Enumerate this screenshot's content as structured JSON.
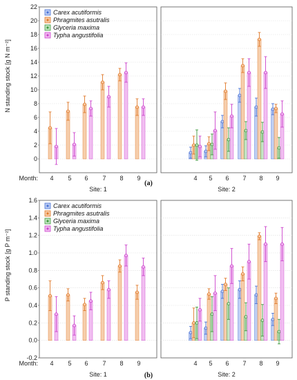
{
  "legend": [
    {
      "name": "Carex acutiformis",
      "color": "#4a73d6",
      "fill": "#b9caf2"
    },
    {
      "name": "Phragmites asutralis",
      "color": "#e07a2c",
      "fill": "#f6c9a4"
    },
    {
      "name": "Glyceria maxima",
      "color": "#3f9a3f",
      "fill": "#bfe3bf"
    },
    {
      "name": "Typha angustifolia",
      "color": "#cc44cc",
      "fill": "#f0b8f0"
    }
  ],
  "month_label": "Month:",
  "chart_data": [
    {
      "type": "bar",
      "label": "(a)",
      "ylabel": "N standing stock [g N m⁻²]",
      "ylim": [
        -2,
        22
      ],
      "yticks": [
        0,
        2,
        4,
        6,
        8,
        10,
        12,
        14,
        16,
        18,
        20,
        22
      ],
      "sites": [
        {
          "name": "Site: 1",
          "months": [
            "4",
            "5",
            "6",
            "7",
            "8",
            "9"
          ],
          "series": [
            {
              "name": "Carex acutiformis",
              "values": [
                null,
                null,
                null,
                null,
                null,
                null
              ],
              "err": [
                0,
                0,
                0,
                0,
                0,
                0
              ]
            },
            {
              "name": "Phragmites asutralis",
              "values": [
                4.5,
                6.9,
                7.9,
                11.1,
                12.2,
                7.5
              ],
              "err": [
                2.3,
                1.3,
                1.2,
                1.1,
                0.9,
                1.2
              ]
            },
            {
              "name": "Glyceria maxima",
              "values": [
                null,
                null,
                null,
                null,
                null,
                null
              ],
              "err": [
                0,
                0,
                0,
                0,
                0,
                0
              ]
            },
            {
              "name": "Typha angustifolia",
              "values": [
                1.8,
                2.1,
                7.3,
                9.0,
                12.5,
                7.5
              ],
              "err": [
                2.6,
                1.7,
                1.1,
                1.5,
                1.4,
                1.2
              ]
            }
          ]
        },
        {
          "name": "Site: 2",
          "months": [
            "4",
            "5",
            "6",
            "7",
            "8",
            "9"
          ],
          "series": [
            {
              "name": "Carex acutiformis",
              "values": [
                0.9,
                1.1,
                5.4,
                9.2,
                7.5,
                7.2
              ],
              "err": [
                0.8,
                0.8,
                0.9,
                1.0,
                1.3,
                0.8
              ]
            },
            {
              "name": "Phragmites asutralis",
              "values": [
                2.0,
                2.2,
                9.8,
                13.5,
                17.3,
                7.3
              ],
              "err": [
                1.3,
                1.0,
                1.2,
                1.0,
                1.0,
                0.6
              ]
            },
            {
              "name": "Glyceria maxima",
              "values": [
                2.0,
                2.1,
                2.8,
                4.1,
                3.9,
                1.6
              ],
              "err": [
                2.2,
                1.5,
                1.7,
                1.3,
                1.4,
                1.5
              ]
            },
            {
              "name": "Typha angustifolia",
              "values": [
                1.8,
                4.1,
                6.2,
                12.5,
                12.5,
                6.5
              ],
              "err": [
                1.5,
                2.7,
                1.7,
                2.0,
                2.3,
                1.9
              ]
            }
          ]
        }
      ]
    },
    {
      "type": "bar",
      "label": "(b)",
      "ylabel": "P standing stock [g P m⁻²]",
      "ylim": [
        -0.2,
        1.6
      ],
      "yticks": [
        -0.2,
        0.0,
        0.2,
        0.4,
        0.6,
        0.8,
        1.0,
        1.2,
        1.4,
        1.6
      ],
      "sites": [
        {
          "name": "Site: 1",
          "months": [
            "4",
            "5",
            "6",
            "7",
            "8",
            "9"
          ],
          "series": [
            {
              "name": "Carex acutiformis",
              "values": [
                null,
                null,
                null,
                null,
                null,
                null
              ],
              "err": [
                0,
                0,
                0,
                0,
                0,
                0
              ]
            },
            {
              "name": "Phragmites asutralis",
              "values": [
                0.51,
                0.52,
                0.41,
                0.66,
                0.85,
                0.55
              ],
              "err": [
                0.17,
                0.07,
                0.07,
                0.08,
                0.07,
                0.08
              ]
            },
            {
              "name": "Glyceria maxima",
              "values": [
                null,
                null,
                null,
                null,
                null,
                null
              ],
              "err": [
                0,
                0,
                0,
                0,
                0,
                0
              ]
            },
            {
              "name": "Typha angustifolia",
              "values": [
                0.3,
                0.17,
                0.45,
                0.58,
                0.97,
                0.84
              ],
              "err": [
                0.2,
                0.11,
                0.1,
                0.1,
                0.12,
                0.1
              ]
            }
          ]
        },
        {
          "name": "Site: 2",
          "months": [
            "4",
            "5",
            "6",
            "7",
            "8",
            "9"
          ],
          "series": [
            {
              "name": "Carex acutiformis",
              "values": [
                0.09,
                0.14,
                0.56,
                0.58,
                0.52,
                0.24
              ],
              "err": [
                0.07,
                0.07,
                0.08,
                0.1,
                0.1,
                0.07
              ]
            },
            {
              "name": "Phragmites asutralis",
              "values": [
                0.2,
                0.53,
                0.64,
                0.76,
                1.19,
                0.48
              ],
              "err": [
                0.17,
                0.06,
                0.07,
                0.08,
                0.04,
                0.06
              ]
            },
            {
              "name": "Glyceria maxima",
              "values": [
                0.2,
                0.3,
                0.42,
                0.27,
                0.23,
                0.1
              ],
              "err": [
                0.18,
                0.2,
                0.18,
                0.16,
                0.18,
                0.14
              ]
            },
            {
              "name": "Typha angustifolia",
              "values": [
                0.35,
                0.54,
                0.85,
                0.9,
                1.1,
                1.1
              ],
              "err": [
                0.13,
                0.2,
                0.2,
                0.2,
                0.2,
                0.19
              ]
            }
          ]
        }
      ]
    }
  ]
}
